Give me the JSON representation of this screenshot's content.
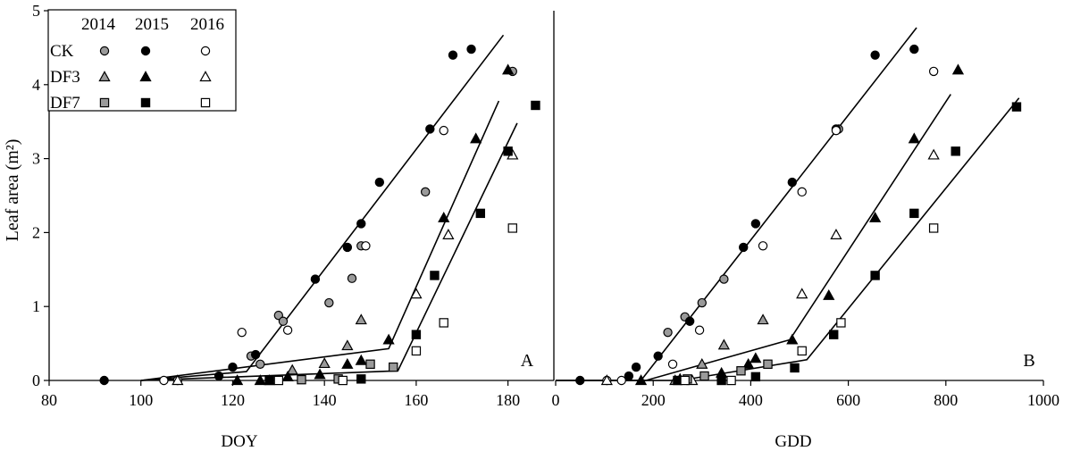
{
  "y_axis": {
    "label": "Leaf area (m²)"
  },
  "legend": {
    "years": [
      "2014",
      "2015",
      "2016"
    ],
    "rows": [
      {
        "label": "CK",
        "marker": "circle"
      },
      {
        "label": "DF3",
        "marker": "triangle"
      },
      {
        "label": "DF7",
        "marker": "square"
      }
    ]
  },
  "colors": {
    "2014": "#9a9a9a",
    "2015": "#000000",
    "2016": "#ffffff",
    "stroke": "#000000"
  },
  "chart_data": [
    {
      "panel": "A",
      "type": "scatter",
      "xlabel": "DOY",
      "ylabel": "Leaf area (m²)",
      "xlim": [
        80,
        190
      ],
      "ylim": [
        0,
        5
      ],
      "xticks": [
        80,
        100,
        120,
        140,
        160,
        180
      ],
      "yticks": [
        0,
        1,
        2,
        3,
        4,
        5
      ],
      "series": [
        {
          "treatment": "CK",
          "year": "2014",
          "marker": "circle",
          "points": [
            [
              124,
              0.33
            ],
            [
              126,
              0.22
            ],
            [
              130,
              0.88
            ],
            [
              131,
              0.8
            ],
            [
              141,
              1.05
            ],
            [
              146,
              1.38
            ],
            [
              148,
              1.82
            ],
            [
              162,
              2.55
            ],
            [
              181,
              4.18
            ]
          ]
        },
        {
          "treatment": "CK",
          "year": "2015",
          "marker": "circle",
          "points": [
            [
              92,
              0.0
            ],
            [
              117,
              0.06
            ],
            [
              120,
              0.18
            ],
            [
              125,
              0.35
            ],
            [
              138,
              1.37
            ],
            [
              145,
              1.8
            ],
            [
              148,
              2.12
            ],
            [
              152,
              2.68
            ],
            [
              163,
              3.4
            ],
            [
              168,
              4.4
            ],
            [
              172,
              4.48
            ]
          ]
        },
        {
          "treatment": "CK",
          "year": "2016",
          "marker": "circle",
          "points": [
            [
              105,
              0.0
            ],
            [
              108,
              0.0
            ],
            [
              122,
              0.65
            ],
            [
              132,
              0.68
            ],
            [
              149,
              1.82
            ],
            [
              166,
              3.38
            ]
          ]
        },
        {
          "treatment": "DF3",
          "year": "2014",
          "marker": "triangle",
          "points": [
            [
              133,
              0.14
            ],
            [
              140,
              0.23
            ],
            [
              145,
              0.47
            ],
            [
              148,
              0.82
            ]
          ]
        },
        {
          "treatment": "DF3",
          "year": "2015",
          "marker": "triangle",
          "points": [
            [
              121,
              0.0
            ],
            [
              126,
              0.0
            ],
            [
              132,
              0.05
            ],
            [
              139,
              0.08
            ],
            [
              145,
              0.22
            ],
            [
              148,
              0.27
            ],
            [
              154,
              0.55
            ],
            [
              166,
              2.2
            ],
            [
              173,
              3.27
            ],
            [
              180,
              4.2
            ]
          ]
        },
        {
          "treatment": "DF3",
          "year": "2016",
          "marker": "triangle",
          "points": [
            [
              108,
              0.0
            ],
            [
              128,
              0.0
            ],
            [
              160,
              1.17
            ],
            [
              167,
              1.97
            ],
            [
              181,
              3.05
            ]
          ]
        },
        {
          "treatment": "DF7",
          "year": "2014",
          "marker": "square",
          "points": [
            [
              135,
              0.01
            ],
            [
              143,
              0.02
            ],
            [
              150,
              0.22
            ],
            [
              155,
              0.18
            ]
          ]
        },
        {
          "treatment": "DF7",
          "year": "2015",
          "marker": "square",
          "points": [
            [
              128,
              0.0
            ],
            [
              148,
              0.02
            ],
            [
              160,
              0.62
            ],
            [
              164,
              1.42
            ],
            [
              174,
              2.26
            ],
            [
              180,
              3.1
            ],
            [
              186,
              3.72
            ]
          ]
        },
        {
          "treatment": "DF7",
          "year": "2016",
          "marker": "square",
          "points": [
            [
              130,
              0.0
            ],
            [
              144,
              0.0
            ],
            [
              160,
              0.4
            ],
            [
              166,
              0.78
            ],
            [
              181,
              2.06
            ]
          ]
        }
      ],
      "fits": [
        {
          "treatment": "CK",
          "points": [
            [
              100,
              0.0
            ],
            [
              123,
              0.12
            ],
            [
              179,
              4.67
            ]
          ]
        },
        {
          "treatment": "DF3",
          "points": [
            [
              100,
              0.0
            ],
            [
              154,
              0.43
            ],
            [
              178,
              3.78
            ]
          ]
        },
        {
          "treatment": "DF7",
          "points": [
            [
              100,
              0.0
            ],
            [
              156,
              0.13
            ],
            [
              182,
              3.48
            ]
          ]
        }
      ],
      "annotation": "A"
    },
    {
      "panel": "B",
      "type": "scatter",
      "xlabel": "GDD",
      "ylabel": "Leaf area (m²)",
      "xlim": [
        0,
        1000
      ],
      "ylim": [
        0,
        5
      ],
      "xticks": [
        0,
        200,
        400,
        600,
        800,
        1000
      ],
      "yticks": [
        0,
        1,
        2,
        3,
        4,
        5
      ],
      "series": [
        {
          "treatment": "CK",
          "year": "2014",
          "marker": "circle",
          "points": [
            [
              230,
              0.65
            ],
            [
              265,
              0.86
            ],
            [
              300,
              1.05
            ],
            [
              345,
              1.37
            ],
            [
              580,
              3.4
            ]
          ]
        },
        {
          "treatment": "CK",
          "year": "2015",
          "marker": "circle",
          "points": [
            [
              50,
              0.0
            ],
            [
              150,
              0.06
            ],
            [
              165,
              0.18
            ],
            [
              210,
              0.33
            ],
            [
              275,
              0.8
            ],
            [
              385,
              1.8
            ],
            [
              410,
              2.12
            ],
            [
              485,
              2.68
            ],
            [
              575,
              3.4
            ],
            [
              655,
              4.4
            ],
            [
              735,
              4.48
            ]
          ]
        },
        {
          "treatment": "CK",
          "year": "2016",
          "marker": "circle",
          "points": [
            [
              105,
              0.0
            ],
            [
              135,
              0.0
            ],
            [
              240,
              0.22
            ],
            [
              295,
              0.68
            ],
            [
              425,
              1.82
            ],
            [
              505,
              2.55
            ],
            [
              575,
              3.38
            ],
            [
              775,
              4.18
            ]
          ]
        },
        {
          "treatment": "DF3",
          "year": "2014",
          "marker": "triangle",
          "points": [
            [
              245,
              0.0
            ],
            [
              300,
              0.22
            ],
            [
              345,
              0.48
            ],
            [
              425,
              0.82
            ]
          ]
        },
        {
          "treatment": "DF3",
          "year": "2015",
          "marker": "triangle",
          "points": [
            [
              175,
              0.0
            ],
            [
              255,
              0.02
            ],
            [
              340,
              0.1
            ],
            [
              395,
              0.22
            ],
            [
              410,
              0.3
            ],
            [
              485,
              0.55
            ],
            [
              560,
              1.15
            ],
            [
              655,
              2.2
            ],
            [
              735,
              3.27
            ],
            [
              825,
              4.2
            ]
          ]
        },
        {
          "treatment": "DF3",
          "year": "2016",
          "marker": "triangle",
          "points": [
            [
              105,
              0.0
            ],
            [
              280,
              0.0
            ],
            [
              505,
              1.17
            ],
            [
              575,
              1.97
            ],
            [
              775,
              3.05
            ]
          ]
        },
        {
          "treatment": "DF7",
          "year": "2014",
          "marker": "square",
          "points": [
            [
              270,
              0.02
            ],
            [
              305,
              0.06
            ],
            [
              380,
              0.13
            ],
            [
              435,
              0.22
            ]
          ]
        },
        {
          "treatment": "DF7",
          "year": "2015",
          "marker": "square",
          "points": [
            [
              250,
              0.0
            ],
            [
              340,
              0.0
            ],
            [
              410,
              0.05
            ],
            [
              490,
              0.17
            ],
            [
              570,
              0.62
            ],
            [
              655,
              1.42
            ],
            [
              735,
              2.26
            ],
            [
              820,
              3.1
            ],
            [
              945,
              3.7
            ]
          ]
        },
        {
          "treatment": "DF7",
          "year": "2016",
          "marker": "square",
          "points": [
            [
              265,
              0.0
            ],
            [
              360,
              0.0
            ],
            [
              505,
              0.4
            ],
            [
              585,
              0.78
            ],
            [
              775,
              2.06
            ]
          ]
        }
      ],
      "fits": [
        {
          "treatment": "CK",
          "points": [
            [
              0,
              0.0
            ],
            [
              175,
              0.0
            ],
            [
              740,
              4.77
            ]
          ]
        },
        {
          "treatment": "DF3",
          "points": [
            [
              0,
              0.0
            ],
            [
              185,
              0.0
            ],
            [
              480,
              0.55
            ],
            [
              810,
              3.87
            ]
          ]
        },
        {
          "treatment": "DF7",
          "points": [
            [
              0,
              0.0
            ],
            [
              255,
              0.0
            ],
            [
              515,
              0.28
            ],
            [
              950,
              3.82
            ]
          ]
        }
      ],
      "annotation": "B"
    }
  ]
}
